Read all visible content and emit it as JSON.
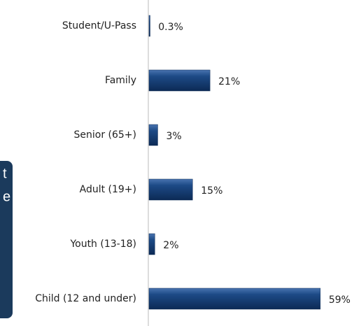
{
  "chart_data": {
    "type": "bar",
    "orientation": "horizontal",
    "categories": [
      "Student/U-Pass",
      "Family",
      "Senior (65+)",
      "Adult (19+)",
      "Youth (13-18)",
      "Child (12 and under)"
    ],
    "values": [
      0.3,
      21,
      3,
      15,
      2,
      59
    ],
    "value_labels": [
      "0.3%",
      "21%",
      "3%",
      "15%",
      "2%",
      "59%"
    ],
    "color": "#1d4a86",
    "xlim": [
      0,
      60
    ]
  },
  "side_panel_text": [
    "t",
    "e"
  ]
}
